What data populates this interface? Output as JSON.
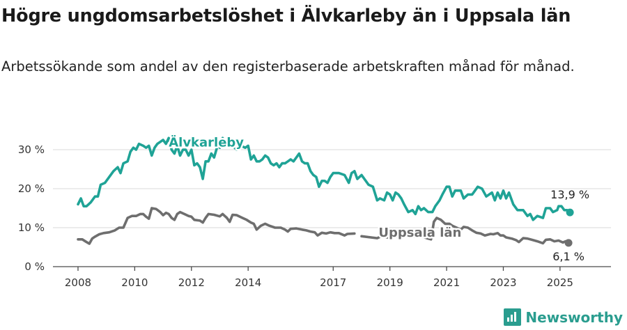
{
  "title": "Högre ungdomsarbetslöshet i Älvkarleby än i Uppsala län",
  "subtitle": "Arbetssökande som andel av den registerbaserade arbetskraften månad för månad.",
  "brand": "Newsworthy",
  "colors": {
    "alvkarleby": "#1fa396",
    "uppsala": "#6e6e6e",
    "grid": "#d9d9d9",
    "axis": "#4a4a4a"
  },
  "chart_data": {
    "type": "line",
    "title": "Högre ungdomsarbetslöshet i Älvkarleby än i Uppsala län",
    "ylim": [
      0,
      33
    ],
    "yticks": [
      0,
      10,
      20,
      30
    ],
    "ytick_labels": [
      "0 %",
      "10 %",
      "20 %",
      "30 %"
    ],
    "xlim": [
      2007.3,
      2026.2
    ],
    "xticks": [
      2008,
      2010,
      2012,
      2014,
      2017,
      2019,
      2021,
      2023,
      2025
    ],
    "xtick_labels": [
      "2008",
      "2010",
      "2012",
      "2014",
      "2017",
      "2019",
      "2021",
      "2023",
      "2025"
    ],
    "grid": true,
    "series": [
      {
        "name": "Älvkarleby",
        "color": "#1fa396",
        "label_at": [
          2011.2,
          30.8
        ],
        "end_label": "13,9 %",
        "gaps_after": [
          2012.9,
          2013.1,
          2013.25
        ],
        "points": [
          [
            2008.0,
            16.0
          ],
          [
            2008.1,
            17.5
          ],
          [
            2008.2,
            15.5
          ],
          [
            2008.3,
            15.5
          ],
          [
            2008.45,
            16.5
          ],
          [
            2008.6,
            18.0
          ],
          [
            2008.7,
            18.0
          ],
          [
            2008.8,
            21.0
          ],
          [
            2008.95,
            21.5
          ],
          [
            2009.1,
            23.0
          ],
          [
            2009.25,
            24.5
          ],
          [
            2009.4,
            25.5
          ],
          [
            2009.5,
            24.0
          ],
          [
            2009.6,
            26.5
          ],
          [
            2009.75,
            27.0
          ],
          [
            2009.85,
            29.5
          ],
          [
            2009.95,
            30.5
          ],
          [
            2010.05,
            30.0
          ],
          [
            2010.15,
            31.5
          ],
          [
            2010.3,
            31.0
          ],
          [
            2010.4,
            30.5
          ],
          [
            2010.5,
            31.0
          ],
          [
            2010.6,
            28.5
          ],
          [
            2010.7,
            30.5
          ],
          [
            2010.8,
            31.5
          ],
          [
            2010.9,
            32.0
          ],
          [
            2011.0,
            32.5
          ],
          [
            2011.1,
            31.5
          ],
          [
            2011.2,
            33.0
          ],
          [
            2011.3,
            30.0
          ],
          [
            2011.4,
            29.0
          ],
          [
            2011.5,
            31.0
          ],
          [
            2011.6,
            28.5
          ],
          [
            2011.7,
            30.0
          ],
          [
            2011.8,
            30.0
          ],
          [
            2011.9,
            28.5
          ],
          [
            2012.0,
            30.0
          ],
          [
            2012.1,
            26.0
          ],
          [
            2012.2,
            26.5
          ],
          [
            2012.3,
            25.5
          ],
          [
            2012.4,
            22.5
          ],
          [
            2012.5,
            27.0
          ],
          [
            2012.6,
            27.0
          ],
          [
            2012.7,
            29.0
          ],
          [
            2012.8,
            28.0
          ],
          [
            2012.9,
            30.5
          ],
          [
            2013.0,
            30.5
          ],
          [
            2013.1,
            33.0
          ],
          [
            2013.25,
            33.0
          ],
          [
            2013.3,
            31.5
          ],
          [
            2013.45,
            31.0
          ],
          [
            2013.6,
            30.0
          ],
          [
            2013.75,
            31.0
          ],
          [
            2013.9,
            30.5
          ],
          [
            2014.0,
            31.0
          ],
          [
            2014.1,
            27.5
          ],
          [
            2014.2,
            28.5
          ],
          [
            2014.3,
            27.0
          ],
          [
            2014.4,
            27.0
          ],
          [
            2014.5,
            27.5
          ],
          [
            2014.6,
            28.5
          ],
          [
            2014.7,
            28.0
          ],
          [
            2014.8,
            26.5
          ],
          [
            2014.9,
            26.0
          ],
          [
            2015.0,
            26.5
          ],
          [
            2015.1,
            25.5
          ],
          [
            2015.2,
            26.5
          ],
          [
            2015.3,
            26.5
          ],
          [
            2015.4,
            27.0
          ],
          [
            2015.5,
            27.5
          ],
          [
            2015.6,
            27.0
          ],
          [
            2015.7,
            28.0
          ],
          [
            2015.8,
            29.0
          ],
          [
            2015.9,
            27.0
          ],
          [
            2016.0,
            26.5
          ],
          [
            2016.1,
            26.5
          ],
          [
            2016.2,
            24.5
          ],
          [
            2016.3,
            23.5
          ],
          [
            2016.4,
            23.0
          ],
          [
            2016.5,
            20.5
          ],
          [
            2016.6,
            22.0
          ],
          [
            2016.7,
            22.0
          ],
          [
            2016.8,
            21.5
          ],
          [
            2016.9,
            23.0
          ],
          [
            2017.0,
            24.0
          ],
          [
            2017.2,
            24.0
          ],
          [
            2017.4,
            23.5
          ],
          [
            2017.55,
            21.5
          ],
          [
            2017.65,
            24.0
          ],
          [
            2017.75,
            24.5
          ],
          [
            2017.85,
            22.5
          ],
          [
            2018.0,
            23.5
          ],
          [
            2018.1,
            22.5
          ],
          [
            2018.25,
            21.0
          ],
          [
            2018.4,
            20.5
          ],
          [
            2018.55,
            17.0
          ],
          [
            2018.65,
            17.5
          ],
          [
            2018.8,
            17.0
          ],
          [
            2018.9,
            19.0
          ],
          [
            2019.0,
            18.5
          ],
          [
            2019.1,
            17.0
          ],
          [
            2019.2,
            19.0
          ],
          [
            2019.3,
            18.5
          ],
          [
            2019.4,
            17.5
          ],
          [
            2019.5,
            16.0
          ],
          [
            2019.65,
            14.0
          ],
          [
            2019.8,
            14.5
          ],
          [
            2019.9,
            13.5
          ],
          [
            2020.0,
            15.5
          ],
          [
            2020.1,
            14.5
          ],
          [
            2020.2,
            15.0
          ],
          [
            2020.35,
            14.0
          ],
          [
            2020.5,
            14.0
          ],
          [
            2020.6,
            15.5
          ],
          [
            2020.75,
            17.0
          ],
          [
            2020.85,
            18.5
          ],
          [
            2021.0,
            20.5
          ],
          [
            2021.1,
            20.5
          ],
          [
            2021.2,
            18.0
          ],
          [
            2021.3,
            19.5
          ],
          [
            2021.5,
            19.5
          ],
          [
            2021.6,
            17.5
          ],
          [
            2021.75,
            18.5
          ],
          [
            2021.9,
            18.5
          ],
          [
            2022.0,
            19.5
          ],
          [
            2022.1,
            20.5
          ],
          [
            2022.25,
            20.0
          ],
          [
            2022.4,
            18.0
          ],
          [
            2022.5,
            18.5
          ],
          [
            2022.6,
            19.0
          ],
          [
            2022.7,
            17.0
          ],
          [
            2022.8,
            19.0
          ],
          [
            2022.9,
            17.5
          ],
          [
            2023.0,
            19.5
          ],
          [
            2023.1,
            17.5
          ],
          [
            2023.2,
            19.0
          ],
          [
            2023.35,
            16.0
          ],
          [
            2023.5,
            14.5
          ],
          [
            2023.7,
            14.5
          ],
          [
            2023.85,
            13.0
          ],
          [
            2023.95,
            13.5
          ],
          [
            2024.05,
            12.0
          ],
          [
            2024.2,
            13.0
          ],
          [
            2024.4,
            12.5
          ],
          [
            2024.5,
            15.0
          ],
          [
            2024.65,
            15.0
          ],
          [
            2024.75,
            14.0
          ],
          [
            2024.9,
            14.5
          ],
          [
            2024.95,
            15.5
          ],
          [
            2025.05,
            15.5
          ],
          [
            2025.15,
            14.5
          ],
          [
            2025.25,
            14.5
          ],
          [
            2025.35,
            13.9
          ]
        ]
      },
      {
        "name": "Uppsala län",
        "color": "#6e6e6e",
        "label_at": [
          2018.6,
          7.7
        ],
        "end_label": "6,1 %",
        "gaps_after": [
          2017.75
        ],
        "points": [
          [
            2008.0,
            7.0
          ],
          [
            2008.15,
            7.0
          ],
          [
            2008.3,
            6.3
          ],
          [
            2008.4,
            5.9
          ],
          [
            2008.5,
            7.2
          ],
          [
            2008.6,
            7.7
          ],
          [
            2008.75,
            8.3
          ],
          [
            2008.9,
            8.6
          ],
          [
            2009.1,
            8.8
          ],
          [
            2009.3,
            9.3
          ],
          [
            2009.45,
            10.0
          ],
          [
            2009.6,
            10.0
          ],
          [
            2009.75,
            12.5
          ],
          [
            2009.9,
            13.0
          ],
          [
            2010.05,
            13.0
          ],
          [
            2010.2,
            13.5
          ],
          [
            2010.3,
            13.5
          ],
          [
            2010.4,
            12.8
          ],
          [
            2010.5,
            12.3
          ],
          [
            2010.6,
            15.0
          ],
          [
            2010.75,
            14.8
          ],
          [
            2010.9,
            14.0
          ],
          [
            2011.0,
            13.2
          ],
          [
            2011.1,
            13.8
          ],
          [
            2011.2,
            13.5
          ],
          [
            2011.3,
            12.5
          ],
          [
            2011.4,
            12.0
          ],
          [
            2011.5,
            13.5
          ],
          [
            2011.6,
            14.0
          ],
          [
            2011.75,
            13.5
          ],
          [
            2011.9,
            13.0
          ],
          [
            2012.0,
            12.8
          ],
          [
            2012.1,
            12.0
          ],
          [
            2012.3,
            11.8
          ],
          [
            2012.4,
            11.3
          ],
          [
            2012.5,
            12.5
          ],
          [
            2012.6,
            13.5
          ],
          [
            2012.8,
            13.3
          ],
          [
            2013.0,
            12.9
          ],
          [
            2013.1,
            13.5
          ],
          [
            2013.25,
            12.5
          ],
          [
            2013.35,
            11.5
          ],
          [
            2013.45,
            13.3
          ],
          [
            2013.6,
            13.2
          ],
          [
            2013.8,
            12.5
          ],
          [
            2013.95,
            12.0
          ],
          [
            2014.1,
            11.3
          ],
          [
            2014.2,
            11.0
          ],
          [
            2014.3,
            9.5
          ],
          [
            2014.45,
            10.5
          ],
          [
            2014.6,
            11.0
          ],
          [
            2014.75,
            10.5
          ],
          [
            2014.95,
            10.0
          ],
          [
            2015.15,
            10.0
          ],
          [
            2015.3,
            9.5
          ],
          [
            2015.4,
            9.0
          ],
          [
            2015.5,
            9.7
          ],
          [
            2015.7,
            9.8
          ],
          [
            2015.9,
            9.5
          ],
          [
            2016.05,
            9.3
          ],
          [
            2016.2,
            9.0
          ],
          [
            2016.35,
            8.8
          ],
          [
            2016.45,
            8.0
          ],
          [
            2016.6,
            8.7
          ],
          [
            2016.75,
            8.5
          ],
          [
            2016.9,
            8.8
          ],
          [
            2017.05,
            8.6
          ],
          [
            2017.2,
            8.6
          ],
          [
            2017.4,
            8.0
          ],
          [
            2017.5,
            8.4
          ],
          [
            2017.75,
            8.5
          ],
          [
            2018.0,
            7.8
          ],
          [
            2018.55,
            7.3
          ],
          [
            2018.7,
            7.8
          ],
          [
            2018.9,
            7.5
          ],
          [
            2019.1,
            7.5
          ],
          [
            2019.3,
            7.8
          ],
          [
            2019.5,
            8.0
          ],
          [
            2019.7,
            7.7
          ],
          [
            2019.9,
            7.8
          ],
          [
            2020.1,
            7.8
          ],
          [
            2020.3,
            7.3
          ],
          [
            2020.45,
            7.0
          ],
          [
            2020.55,
            11.5
          ],
          [
            2020.65,
            12.5
          ],
          [
            2020.8,
            12.0
          ],
          [
            2020.95,
            11.0
          ],
          [
            2021.1,
            11.0
          ],
          [
            2021.2,
            10.5
          ],
          [
            2021.35,
            10.0
          ],
          [
            2021.5,
            9.5
          ],
          [
            2021.6,
            10.2
          ],
          [
            2021.75,
            10.0
          ],
          [
            2021.9,
            9.3
          ],
          [
            2022.05,
            8.7
          ],
          [
            2022.2,
            8.5
          ],
          [
            2022.35,
            8.0
          ],
          [
            2022.55,
            8.4
          ],
          [
            2022.65,
            8.3
          ],
          [
            2022.8,
            8.6
          ],
          [
            2022.9,
            8.0
          ],
          [
            2023.0,
            8.0
          ],
          [
            2023.1,
            7.5
          ],
          [
            2023.3,
            7.2
          ],
          [
            2023.45,
            6.8
          ],
          [
            2023.55,
            6.3
          ],
          [
            2023.7,
            7.3
          ],
          [
            2023.85,
            7.2
          ],
          [
            2024.05,
            6.8
          ],
          [
            2024.2,
            6.5
          ],
          [
            2024.4,
            6.0
          ],
          [
            2024.5,
            6.9
          ],
          [
            2024.65,
            7.0
          ],
          [
            2024.8,
            6.5
          ],
          [
            2024.95,
            6.7
          ],
          [
            2025.1,
            6.2
          ],
          [
            2025.2,
            6.5
          ],
          [
            2025.3,
            6.1
          ]
        ]
      }
    ]
  }
}
